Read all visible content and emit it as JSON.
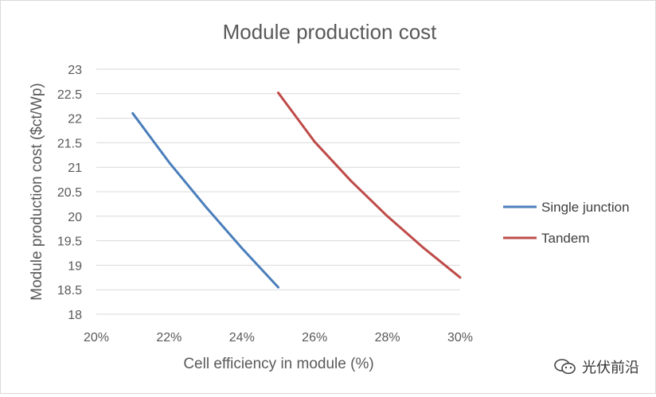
{
  "chart_data": {
    "type": "line",
    "title": "Module production cost",
    "xlabel": "Cell efficiency in module (%)",
    "ylabel": "Module production cost ($ct/Wp)",
    "xlim": [
      20,
      30
    ],
    "ylim": [
      18,
      23
    ],
    "x_ticks": [
      20,
      22,
      24,
      26,
      28,
      30
    ],
    "x_tick_labels": [
      "20%",
      "22%",
      "24%",
      "26%",
      "28%",
      "30%"
    ],
    "y_ticks": [
      18,
      18.5,
      19,
      19.5,
      20,
      20.5,
      21,
      21.5,
      22,
      22.5,
      23
    ],
    "y_tick_labels": [
      "18",
      "18.5",
      "19",
      "19.5",
      "20",
      "20.5",
      "21",
      "21.5",
      "22",
      "22.5",
      "23"
    ],
    "grid": true,
    "legend_position": "right",
    "series": [
      {
        "name": "Single junction",
        "color": "#4a7ebb",
        "points": [
          [
            21,
            22.1
          ],
          [
            22,
            21.1
          ],
          [
            23,
            20.2
          ],
          [
            24,
            19.35
          ],
          [
            25,
            18.55
          ]
        ]
      },
      {
        "name": "Tandem",
        "color": "#be4b48",
        "points": [
          [
            25,
            22.52
          ],
          [
            26,
            21.52
          ],
          [
            27,
            20.72
          ],
          [
            28,
            20.0
          ],
          [
            29,
            19.35
          ],
          [
            30,
            18.75
          ]
        ]
      }
    ]
  },
  "watermark": {
    "text": "光伏前沿",
    "icon": "wechat-icon"
  }
}
